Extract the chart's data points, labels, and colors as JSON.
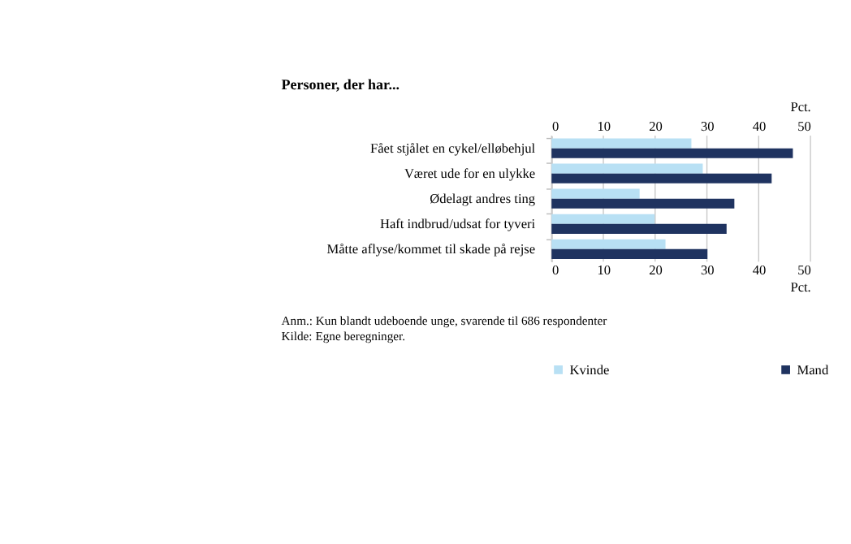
{
  "chart_data": {
    "type": "bar",
    "orientation": "horizontal",
    "title": "Personer, der har...",
    "categories": [
      "Fået stjålet en cykel/elløbehjul",
      "Været ude for en ulykke",
      "Ødelagt andres ting",
      "Haft indbrud/udsat for tyveri",
      "Måtte aflyse/kommet til skade på rejse"
    ],
    "series": [
      {
        "name": "Kvinde",
        "color": "#b8e0f4",
        "values": [
          27.0,
          29.2,
          17.0,
          19.9,
          22.0
        ]
      },
      {
        "name": "Mand",
        "color": "#1f3360",
        "values": [
          46.6,
          42.5,
          35.3,
          33.8,
          30.1
        ]
      }
    ],
    "xlim": [
      0,
      50
    ],
    "xticks": [
      0,
      10,
      20,
      30,
      40,
      50
    ],
    "xlabel": "Pct.",
    "x2lim": [
      0,
      50
    ],
    "x2ticks": [
      0,
      10,
      20,
      30,
      40,
      50
    ],
    "x2label": "Pct.",
    "grid": "x",
    "legend": "bottom",
    "annotations": [
      "Anm.:  Kun blandt udeboende unge, svarende til 686 respondenter",
      "Kilde:  Egne beregninger."
    ]
  }
}
